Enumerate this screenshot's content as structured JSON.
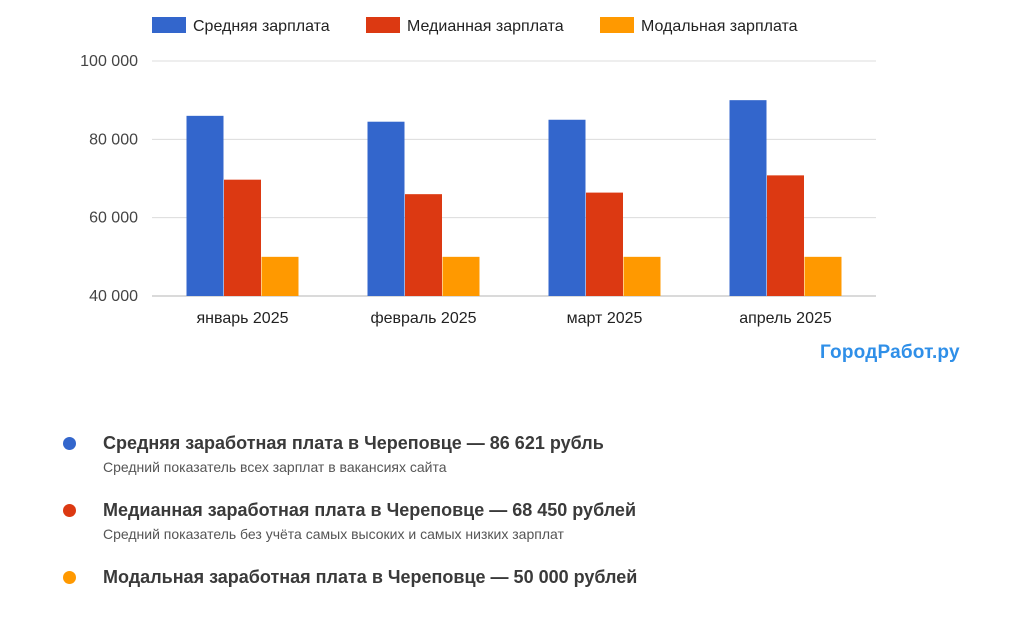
{
  "chart_data": {
    "type": "bar",
    "categories": [
      "январь 2025",
      "февраль 2025",
      "март 2025",
      "апрель 2025"
    ],
    "series": [
      {
        "name": "Средняя зарплата",
        "color": "#3366cc",
        "values": [
          86000,
          84500,
          85000,
          90000
        ]
      },
      {
        "name": "Медианная зарплата",
        "color": "#dc3912",
        "values": [
          69700,
          66000,
          66400,
          70800
        ]
      },
      {
        "name": "Модальная зарплата",
        "color": "#ff9900",
        "values": [
          50000,
          50000,
          50000,
          50000
        ]
      }
    ],
    "ylim": [
      40000,
      100000
    ],
    "yticks": [
      40000,
      60000,
      80000,
      100000
    ],
    "ytick_labels": [
      "40 000",
      "60 000",
      "80 000",
      "100 000"
    ],
    "grid": true,
    "legend_position": "top"
  },
  "brand": "ГородРабот.ру",
  "info_items": [
    {
      "color": "#3366cc",
      "title": "Средняя заработная плата в Череповце — 86 621 рубль",
      "subtitle": "Средний показатель всех зарплат в вакансиях сайта"
    },
    {
      "color": "#dc3912",
      "title": "Медианная заработная плата в Череповце — 68 450 рублей",
      "subtitle": "Средний показатель без учёта самых высоких и самых низких зарплат"
    },
    {
      "color": "#ff9900",
      "title": "Модальная заработная плата в Череповце — 50 000 рублей",
      "subtitle": ""
    }
  ]
}
